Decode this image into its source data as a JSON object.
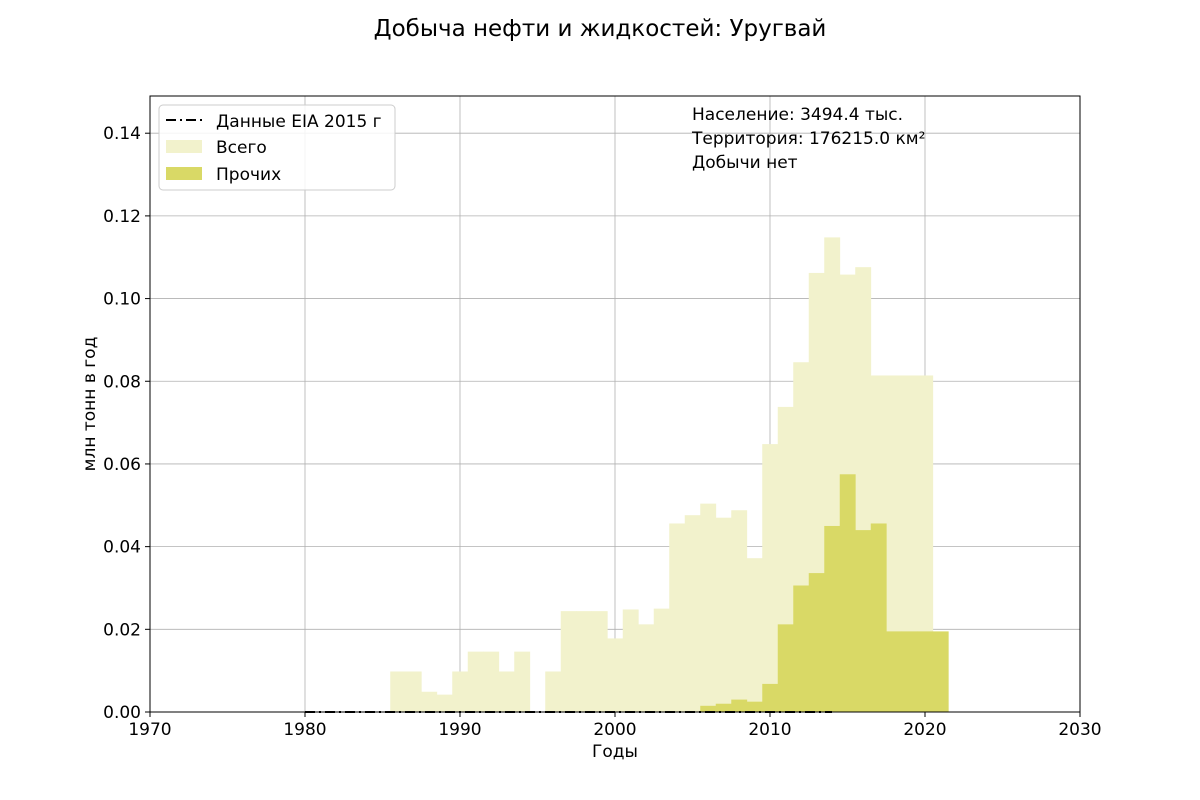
{
  "chart_data": {
    "type": "bar",
    "title": "Добыча нефти и жидкостей: Уругвай",
    "xlabel": "Годы",
    "ylabel": "млн тонн в год",
    "xlim": [
      1970,
      2030
    ],
    "ylim": [
      0,
      0.149
    ],
    "xticks": [
      "1970",
      "1980",
      "1990",
      "2000",
      "2010",
      "2020",
      "2030"
    ],
    "yticks": [
      "0.00",
      "0.02",
      "0.04",
      "0.06",
      "0.08",
      "0.10",
      "0.12",
      "0.14"
    ],
    "grid": true,
    "legend_position": "top-left",
    "annotations": [
      "Население: 3494.4 тыс.",
      "Территория: 176215.0 км²",
      "Добычи нет"
    ],
    "colors": {
      "total": "#f2f2cc",
      "other": "#d9d966",
      "eia": "#000000"
    },
    "series": [
      {
        "name": "Всего",
        "kind": "bar",
        "years": [
          1985,
          1986,
          1987,
          1988,
          1989,
          1990,
          1991,
          1992,
          1993,
          1994,
          1995,
          1996,
          1997,
          1998,
          1999,
          2000,
          2001,
          2002,
          2003,
          2004,
          2005,
          2006,
          2007,
          2008,
          2009,
          2010,
          2011,
          2012,
          2013,
          2014,
          2015,
          2016,
          2017,
          2018,
          2019,
          2020
        ],
        "values": [
          0.0098,
          0.0098,
          0.0049,
          0.0042,
          0.0098,
          0.0146,
          0.0146,
          0.0098,
          0.0146,
          0,
          0.0098,
          0.0244,
          0.0244,
          0.0244,
          0.0178,
          0.0248,
          0.0212,
          0.025,
          0.0456,
          0.0476,
          0.0504,
          0.047,
          0.0488,
          0.0372,
          0.0648,
          0.0738,
          0.0846,
          0.1062,
          0.1148,
          0.1058,
          0.1076,
          0.0814,
          0.0814,
          0.0814,
          0.0814,
          0
        ]
      },
      {
        "name": "Прочих",
        "kind": "bar",
        "years": [
          2005,
          2006,
          2007,
          2008,
          2009,
          2010,
          2011,
          2012,
          2013,
          2014,
          2015,
          2016,
          2017,
          2018,
          2019,
          2020
        ],
        "values": [
          0.0015,
          0.002,
          0.003,
          0.0025,
          0.0068,
          0.0212,
          0.0306,
          0.0336,
          0.045,
          0.0575,
          0.044,
          0.0456,
          0.0195,
          0.0195,
          0.0195,
          0.0195
        ]
      },
      {
        "name": "Данные EIA 2015 г",
        "kind": "line",
        "x": [
          1980,
          2014
        ],
        "y": [
          0,
          0
        ]
      }
    ]
  }
}
